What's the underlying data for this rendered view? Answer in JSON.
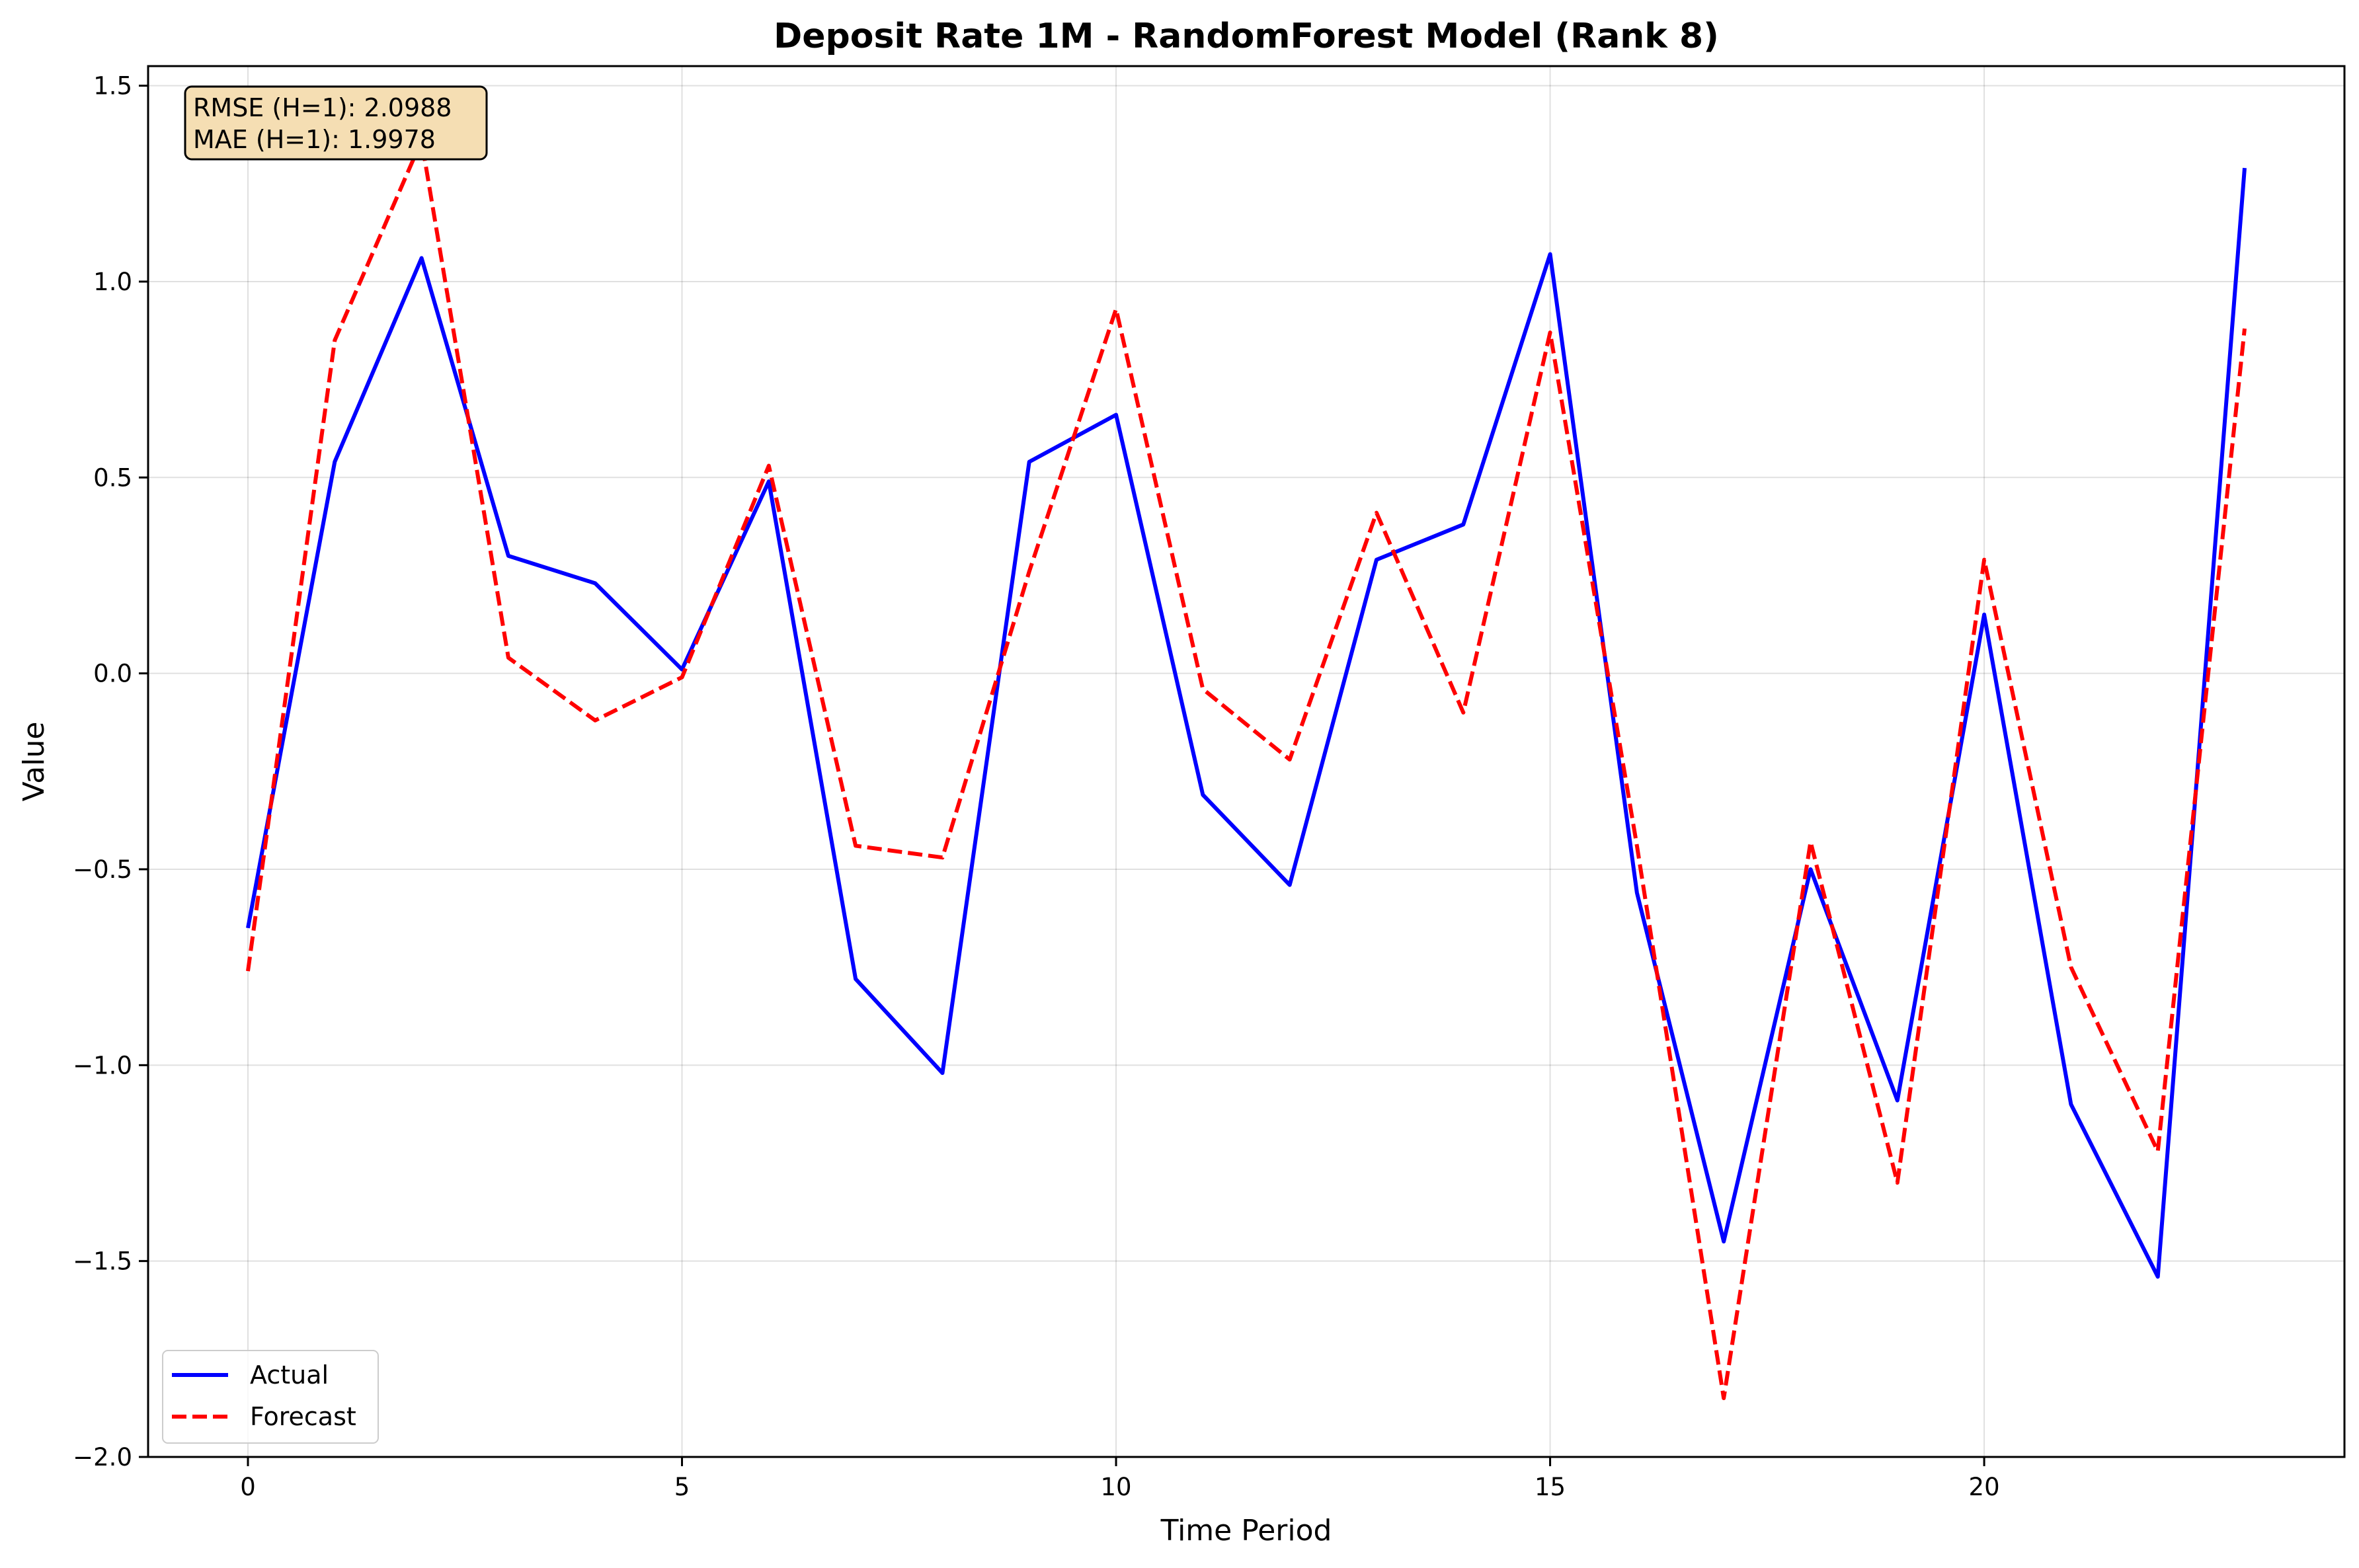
{
  "chart_data": {
    "type": "line",
    "title": "Deposit Rate 1M - RandomForest Model (Rank 8)",
    "xlabel": "Time Period",
    "ylabel": "Value",
    "xlim": [
      -1.15,
      24.15
    ],
    "ylim": [
      -2.0,
      1.55
    ],
    "x_ticks": [
      0,
      5,
      10,
      15,
      20
    ],
    "x_tick_labels": [
      "0",
      "5",
      "10",
      "15",
      "20"
    ],
    "y_ticks": [
      1.5,
      1.0,
      0.5,
      0.0,
      -0.5,
      -1.0,
      -1.5,
      -2.0
    ],
    "y_tick_labels": [
      "1.5",
      "1.0",
      "0.5",
      "0.0",
      "−0.5",
      "−1.0",
      "−1.5",
      "−2.0"
    ],
    "grid": true,
    "legend_position": "lower-left",
    "x": [
      0,
      1,
      2,
      3,
      4,
      5,
      6,
      7,
      8,
      9,
      10,
      11,
      12,
      13,
      14,
      15,
      16,
      17,
      18,
      19,
      20,
      21,
      22,
      23
    ],
    "series": [
      {
        "name": "Actual",
        "color": "#0000ff",
        "style": "solid",
        "values": [
          -0.65,
          0.54,
          1.06,
          0.3,
          0.23,
          0.01,
          0.49,
          -0.78,
          -1.02,
          0.54,
          0.66,
          -0.31,
          -0.54,
          0.29,
          0.38,
          1.07,
          -0.56,
          -1.45,
          -0.5,
          -1.09,
          0.15,
          -1.1,
          -1.54,
          1.29
        ]
      },
      {
        "name": "Forecast",
        "color": "#ff0000",
        "style": "dashed",
        "values": [
          -0.76,
          0.85,
          1.36,
          0.04,
          -0.12,
          -0.01,
          0.53,
          -0.44,
          -0.47,
          0.26,
          0.93,
          -0.04,
          -0.22,
          0.41,
          -0.1,
          0.87,
          -0.44,
          -1.85,
          -0.43,
          -1.3,
          0.29,
          -0.75,
          -1.22,
          0.88
        ]
      }
    ],
    "annotations": [
      {
        "text": "RMSE (H=1): 2.0988",
        "background": "#f5deb3"
      },
      {
        "text": "MAE (H=1): 1.9978",
        "background": "#f5deb3"
      }
    ]
  }
}
